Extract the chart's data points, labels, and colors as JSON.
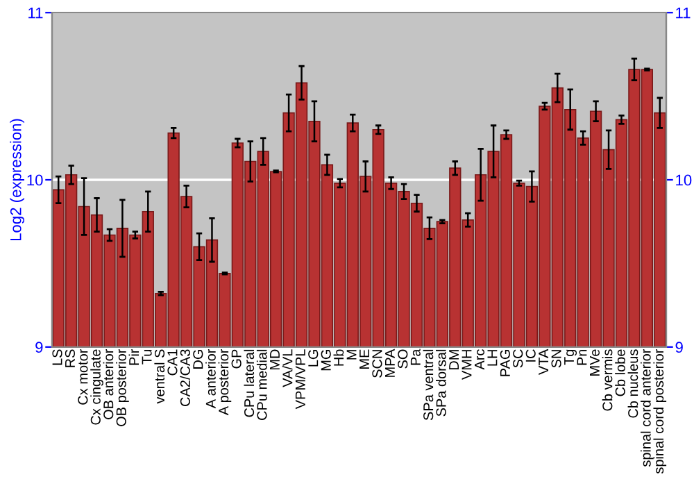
{
  "chart_data": {
    "type": "bar",
    "ylabel": "Log2 (expression)",
    "categories": [
      "LS",
      "RS",
      "Cx motor",
      "Cx cingulate",
      "OB anterior",
      "OB posterior",
      "Pir",
      "Tu",
      "ventral S",
      "CA1",
      "CA2/CA3",
      "DG",
      "A anterior",
      "A posterior",
      "GP",
      "CPu lateral",
      "CPu medial",
      "MD",
      "VA/VL",
      "VPM/VPL",
      "LG",
      "MG",
      "Hb",
      "M",
      "ME",
      "SCN",
      "MPA",
      "SO",
      "Pa",
      "SPa ventral",
      "SPa dorsal",
      "DM",
      "VMH",
      "Arc",
      "LH",
      "PAG",
      "SC",
      "IC",
      "VTA",
      "SN",
      "Tg",
      "Pn",
      "MVe",
      "Cb vermis",
      "Cb lobe",
      "Cb nucleus",
      "spinal cord anterior",
      "spinal cord posterior"
    ],
    "values": [
      9.94,
      10.03,
      9.84,
      9.79,
      9.67,
      9.71,
      9.67,
      9.81,
      9.32,
      10.28,
      9.9,
      9.6,
      9.64,
      9.44,
      10.22,
      10.11,
      10.17,
      10.05,
      10.4,
      10.58,
      10.35,
      10.09,
      9.98,
      10.34,
      10.02,
      10.3,
      9.98,
      9.93,
      9.86,
      9.71,
      9.75,
      10.07,
      9.76,
      10.03,
      10.17,
      10.27,
      9.98,
      9.96,
      10.44,
      10.55,
      10.42,
      10.25,
      10.41,
      10.18,
      10.36,
      10.66,
      10.66,
      10.4
    ],
    "errors": [
      0.08,
      0.055,
      0.17,
      0.1,
      0.035,
      0.17,
      0.02,
      0.12,
      0.01,
      0.03,
      0.065,
      0.08,
      0.13,
      0.005,
      0.025,
      0.12,
      0.08,
      0.005,
      0.11,
      0.1,
      0.12,
      0.06,
      0.025,
      0.05,
      0.09,
      0.025,
      0.035,
      0.045,
      0.05,
      0.065,
      0.01,
      0.04,
      0.04,
      0.155,
      0.155,
      0.025,
      0.015,
      0.09,
      0.02,
      0.085,
      0.12,
      0.04,
      0.06,
      0.115,
      0.025,
      0.065,
      0.005,
      0.09
    ],
    "color": "#b83232",
    "ylim": [
      9,
      11
    ],
    "yticks": [
      9,
      10,
      11
    ],
    "y2lim": [
      9,
      11
    ],
    "y2ticks": [
      9,
      10,
      11
    ],
    "grid": "y"
  }
}
